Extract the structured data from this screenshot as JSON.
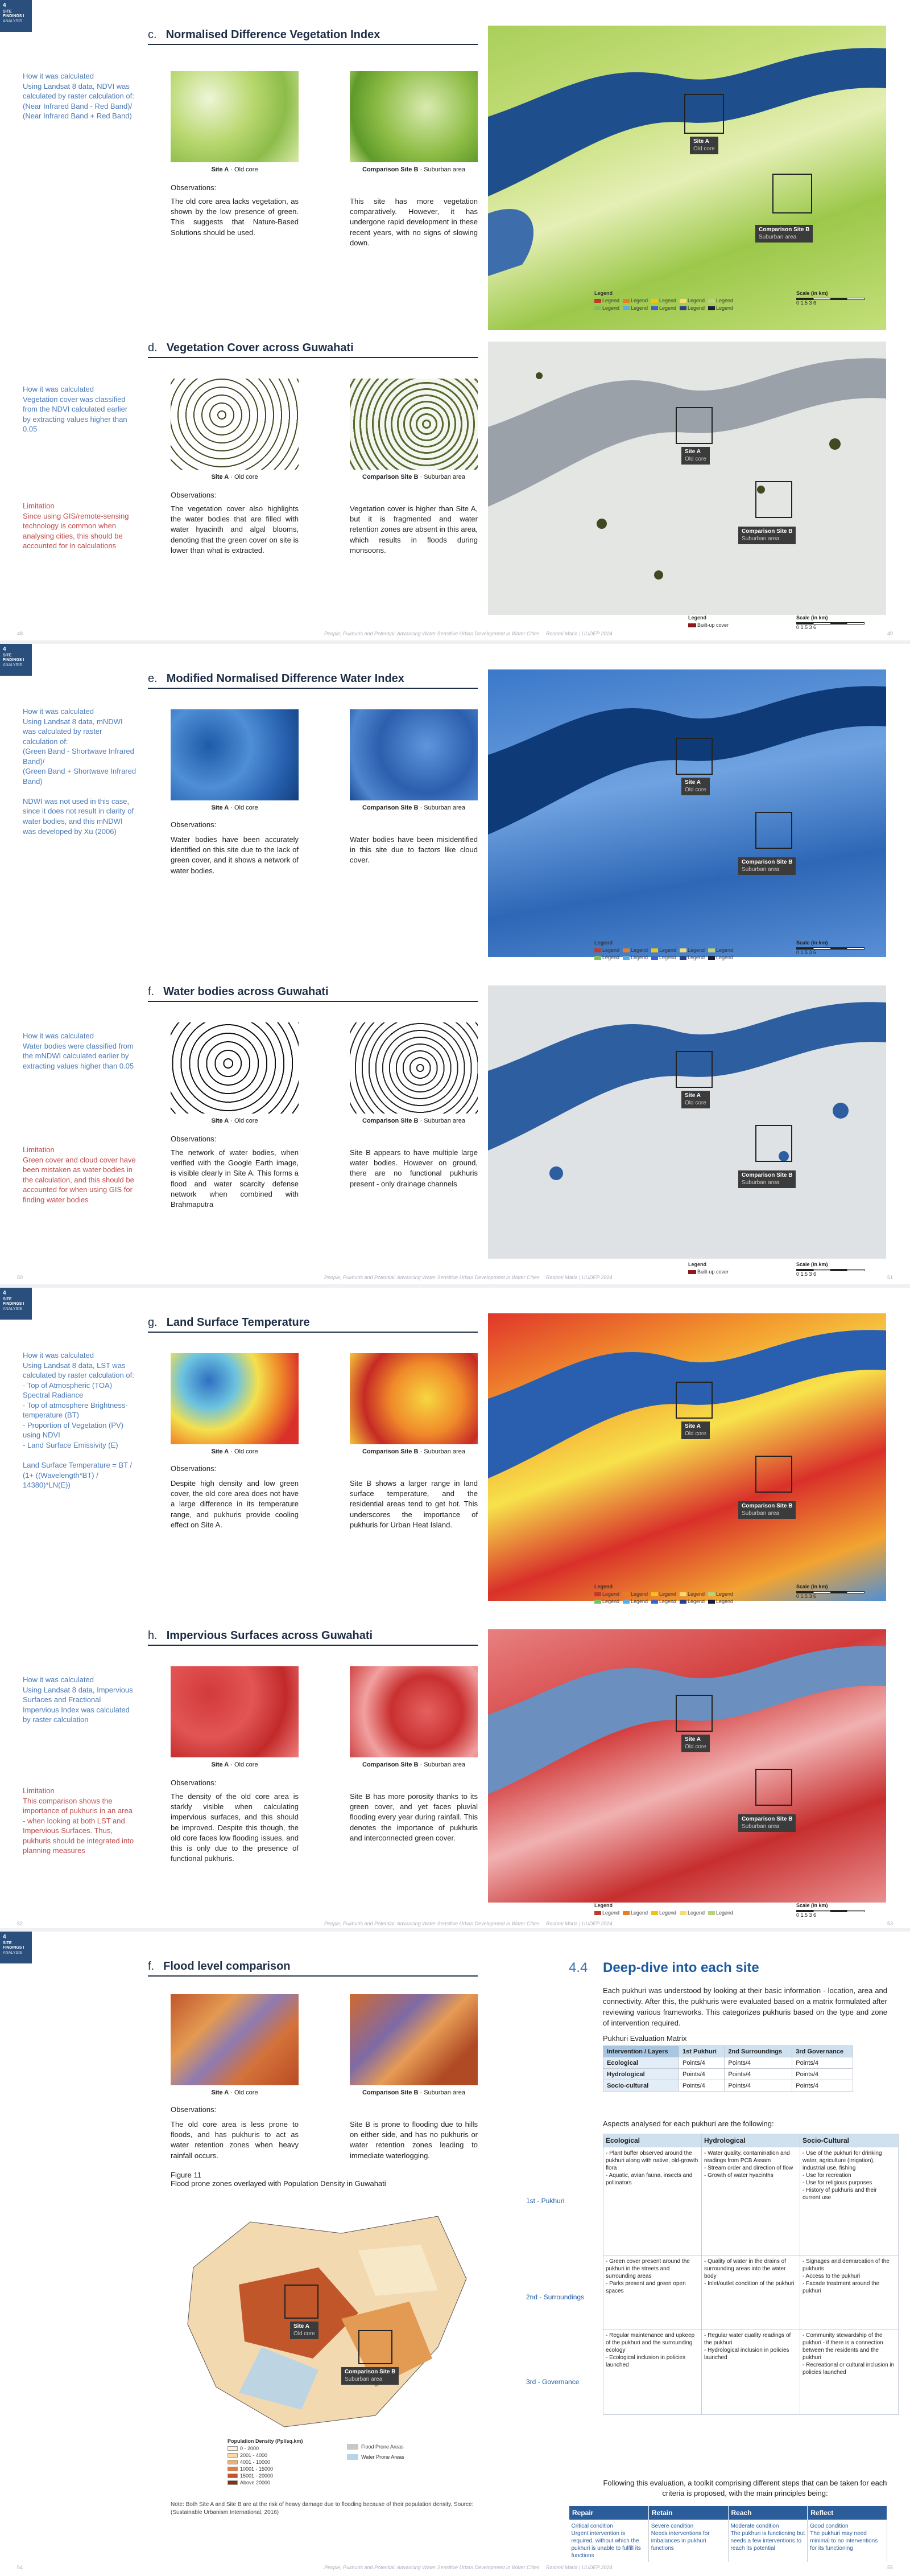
{
  "tag": {
    "num": "4",
    "t1": "SITE FINDINGS I",
    "t2": "ANALYSIS"
  },
  "common": {
    "site_a": "Site A",
    "site_a_sub": "Old core",
    "site_b": "Comparison Site B",
    "site_b_sub": "Suburban area",
    "observations": "Observations:",
    "legend_title": "Legend",
    "scale_title": "Scale (in km)",
    "legend_item": "Legend",
    "built_up": "Built-up cover",
    "scale_vals": "0   1.5   3   6",
    "footer_center": "People, Pukhuris and Potential: Advancing Water Sensitive Urban Development in Water Cities",
    "footer_right": "Rashmi Maria | UUDEP 2024",
    "legend_colors": [
      "#c0392b",
      "#e67e22",
      "#f1c40f",
      "#f7dc6f",
      "#b8d27a",
      "#7fbf5f",
      "#5dade2",
      "#3f63c7",
      "#2c3f8a",
      "#1b1b3a"
    ]
  },
  "p1": {
    "c_letter": "c.",
    "c_title": "Normalised Difference Vegetation Index",
    "c_side": "How it was calculated\nUsing Landsat 8 data, NDVI was calculated by raster calculation of:\n(Near Infrared Band - Red Band)/\n(Near Infrared Band + Red Band)",
    "c_obs_a": "The old core area lacks vegetation, as shown by the low presence of green. This suggests that Nature-Based Solutions should be used.",
    "c_obs_b": "This site has more vegetation comparatively. However, it has undergone rapid development in these recent years, with no signs of slowing down.",
    "d_letter": "d.",
    "d_title": "Vegetation Cover across Guwahati",
    "d_side": "How it was calculated\nVegetation cover was classified from the NDVI calculated earlier by extracting values higher than 0.05",
    "d_lim": "Limitation\nSince using GIS/remote-sensing technology is common when analysing cities, this should be accounted for in calculations",
    "d_obs_a": "The vegetation cover also highlights the water bodies that are filled with water hyacinth and algal blooms, denoting that the green cover on site is lower than what is extracted.",
    "d_obs_b": "Vegetation cover is higher than Site A, but it is fragmented and water retention zones are absent in this area, which results in floods during monsoons.",
    "pl": "48",
    "pr": "49"
  },
  "p2": {
    "e_letter": "e.",
    "e_title": "Modified Normalised Difference Water Index",
    "e_side": "How it was calculated\nUsing Landsat 8 data, mNDWI was calculated by raster calculation of:\n(Green Band - Shortwave Infrared Band)/\n(Green Band + Shortwave Infrared Band)\n\nNDWI was not used in this case, since it does not result in clarity of water bodies, and this mNDWI was developed by Xu (2006)",
    "e_obs_a": "Water bodies have been accurately identified on this site due to the lack of green cover, and it shows a network of water bodies.",
    "e_obs_b": "Water bodies have been misidentified in this site due to factors like cloud cover.",
    "f_letter": "f.",
    "f_title": "Water bodies across Guwahati",
    "f_side": "How it was calculated\nWater bodies were classified from the mNDWI calculated earlier by extracting values higher than 0.05",
    "f_lim": "Limitation\nGreen cover and cloud cover have been mistaken as water bodies in the calculation, and this should be accounted for when using GIS for finding water bodies",
    "f_obs_a": "The network of water bodies, when verified with the Google Earth image, is visible clearly in Site A. This forms a flood and water scarcity defense network when combined with Brahmaputra",
    "f_obs_b": "Site B appears to have multiple large water bodies. However on ground, there are no functional pukhuris present - only drainage channels",
    "pl": "50",
    "pr": "51"
  },
  "p3": {
    "g_letter": "g.",
    "g_title": "Land Surface Temperature",
    "g_side": "How it was calculated\nUsing Landsat 8 data, LST was calculated by raster calculation of:\n- Top of Atmospheric (TOA) Spectral Radiance\n- Top of atmosphere Brightness-temperature (BT)\n- Proportion of Vegetation (PV) using NDVI\n- Land Surface Emissivity (E)\n\nLand Surface Temperature = BT / (1+ ((Wavelength*BT) / 14380)*LN(E))",
    "g_obs_a": "Despite high density and low green cover, the old core area does not have a large difference in its temperature range, and pukhuris provide cooling effect on Site A.",
    "g_obs_b": "Site B shows a larger range in land surface temperature, and the residential areas tend to get hot. This underscores the importance of pukhuris for Urban Heat Island.",
    "h_letter": "h.",
    "h_title": "Impervious Surfaces across Guwahati",
    "h_side": "How it was calculated\nUsing Landsat 8 data, Impervious Surfaces and Fractional Impervious Index was calculated by raster calculation",
    "h_lim": "Limitation\nThis comparison shows the importance of pukhuris in an area - when looking at both LST and Impervious Surfaces. Thus, pukhuris should be integrated into planning measures",
    "h_obs_a": "The density of the old core area is starkly visible when calculating impervious surfaces, and this should be improved. Despite this though, the old core faces low flooding issues, and this is only due to the presence of functional pukhuris.",
    "h_obs_b": "Site B has more porosity thanks to its green cover, and yet faces pluvial flooding every year during rainfall. This denotes the importance of pukhuris and interconnected green cover.",
    "pl": "52",
    "pr": "53"
  },
  "p4": {
    "f_letter": "f.",
    "f_title": "Flood level comparison",
    "f_obs_a": "The old core area is less prone to floods, and has pukhuris to act as water retention zones when heavy rainfall occurs.",
    "f_obs_b": "Site B is prone to flooding due to hills on either side, and has no pukhuris or water retention zones leading to immediate waterlogging.",
    "fig": "Figure 11\nFlood prone zones overlayed with Population Density in Guwahati",
    "pop_title": "Population Density (Ppl/sq.km)",
    "pop_items": [
      "0 - 2000",
      "2001 - 4000",
      "4001 - 10000",
      "10001 - 15000",
      "15001 - 20000",
      "Above 20000"
    ],
    "flood_items": [
      "Flood Prone Areas",
      "Water Prone Areas"
    ],
    "note": "Note: Both Site A and Site B are at the risk of heavy damage due to flooding because of their population density. Source: (Sustainable Urbanism International, 2016)",
    "s_num": "4.4",
    "s_title": "Deep-dive into each site",
    "intro": "Each pukhuri was understood by looking at their basic information - location, area and connectivity. After this, the pukhuris were evaluated based on a matrix formulated after reviewing various frameworks. This categorizes pukhuris based on the type and zone of intervention required.",
    "matrix_title": "Pukhuri Evaluation Matrix",
    "matrix_head": [
      "Intervention / Layers",
      "1st Pukhuri",
      "2nd Surroundings",
      "3rd Governance"
    ],
    "matrix_rows": [
      [
        "Ecological",
        "Points/4",
        "Points/4",
        "Points/4"
      ],
      [
        "Hydrological",
        "Points/4",
        "Points/4",
        "Points/4"
      ],
      [
        "Socio-cultural",
        "Points/4",
        "Points/4",
        "Points/4"
      ]
    ],
    "aspects_title": "Aspects analysed for each pukhuri are the following:",
    "asp_head": [
      "Ecological",
      "Hydrological",
      "Socio-Cultural"
    ],
    "asp_rows": [
      {
        "label": "1st - Pukhuri",
        "c": [
          "- Plant buffer observed around the pukhuri along with native, old-growth flora\n- Aquatic, avian fauna, insects and pollinators",
          "- Water quality, contamination and readings from PCB Assam\n- Stream order and direction of flow\n- Growth of water hyacinths",
          "- Use of the pukhuri for drinking water, agriculture (irrigation), industrial use, fishing\n- Use for recreation\n- Use for religious purposes\n- History of pukhuris and their current use"
        ]
      },
      {
        "label": "2nd - Surroundings",
        "c": [
          "- Green cover present around the pukhuri in the streets and surrounding areas\n- Parks present and green open spaces",
          "- Quality of water in the drains of surrounding areas into the water body\n- Inlet/outlet condition of the pukhuri",
          "- Signages and demarcation of the pukhuris\n- Access to the pukhuri\n- Facade treatment around the pukhuri"
        ]
      },
      {
        "label": "3rd - Governance",
        "c": [
          "- Regular maintenance and upkeep of the pukhuri and the surrounding ecology\n- Ecological inclusion in policies launched",
          "- Regular water quality readings of the pukhuri\n- Hydrological inclusion in policies launched",
          "- Community stewardship of the pukhuri - if there is a connection between the residents and the pukhuri\n- Recreational or cultural inclusion in policies launched"
        ]
      }
    ],
    "toolkit_intro": "Following this evaluation, a toolkit comprising different steps that can be taken for each criteria is proposed, with the main principles being:",
    "tk_head": [
      "Repair",
      "Retain",
      "Reach",
      "Reflect"
    ],
    "tk_cells": [
      "Critical condition\nUrgent intervention is required, without which the pukhuri is unable to fulfill its functions",
      "Severe condition\nNeeds interventions for imbalances in pukhuri functions",
      "Moderate condition\nThe pukhuri is functioning but needs a few interventions to reach its potential",
      "Good condition\nThe pukhuri may need minimal to no interventions for its functioning"
    ],
    "pl": "54",
    "pr": "55"
  }
}
